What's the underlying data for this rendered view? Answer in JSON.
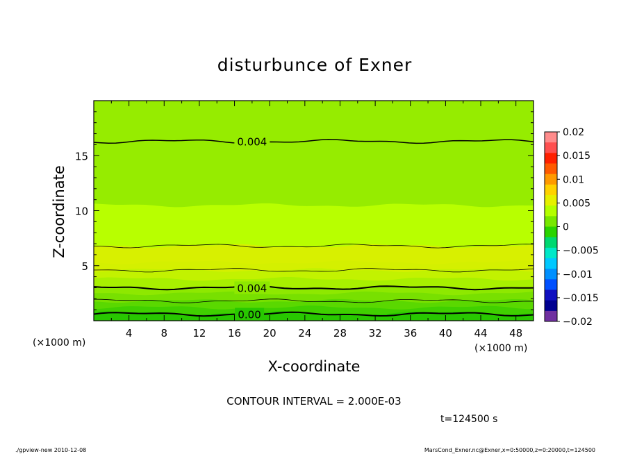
{
  "chart_data": {
    "type": "heatmap",
    "title": "disturbunce of Exner",
    "xlabel": "X-coordinate",
    "ylabel": "Z-coordinate",
    "x_unit": "(×1000 m)",
    "y_unit": "(×1000 m)",
    "xlim": [
      0,
      50
    ],
    "ylim": [
      0,
      20
    ],
    "x_ticks": [
      4,
      8,
      12,
      16,
      20,
      24,
      28,
      32,
      36,
      40,
      44,
      48
    ],
    "y_ticks": [
      5,
      10,
      15
    ],
    "contour_interval_text": "CONTOUR INTERVAL = 2.000E-03",
    "time_text": "t=124500 s",
    "contour_labels": [
      {
        "text": "0.004",
        "x": 18,
        "z": 16.3
      },
      {
        "text": "0.004",
        "x": 18,
        "z": 3.0
      },
      {
        "text": "0.00",
        "x": 17.7,
        "z": 0.6
      }
    ],
    "colorbar": {
      "tick_labels": [
        "0.02",
        "0.015",
        "0.01",
        "0.005",
        "0",
        "−0.005",
        "−0.01",
        "−0.015",
        "−0.02"
      ],
      "levels": [
        0.02,
        0.0175,
        0.015,
        0.0125,
        0.01,
        0.0075,
        0.005,
        0.0025,
        0,
        -0.0025,
        -0.005,
        -0.0075,
        -0.01,
        -0.0125,
        -0.015,
        -0.0175,
        -0.02
      ],
      "colors": [
        "#ff8c8c",
        "#ff5050",
        "#ff2000",
        "#ff5a00",
        "#ff9a00",
        "#ffd200",
        "#e6f000",
        "#b4ff00",
        "#78e800",
        "#2ad400",
        "#00d870",
        "#00e8c8",
        "#00c8ff",
        "#0090ff",
        "#0050ff",
        "#1010c0",
        "#000090",
        "#7030a0"
      ]
    },
    "bands": [
      {
        "z_top": 0.7,
        "color": "#28c800"
      },
      {
        "z_top": 1.2,
        "color": "#40d000"
      },
      {
        "z_top": 1.8,
        "color": "#5ad800"
      },
      {
        "z_top": 2.5,
        "color": "#78e000"
      },
      {
        "z_top": 3.0,
        "color": "#8ee800"
      },
      {
        "z_top": 3.8,
        "color": "#a8f000"
      },
      {
        "z_top": 4.6,
        "color": "#c2f200"
      },
      {
        "z_top": 5.3,
        "color": "#d4f000"
      },
      {
        "z_top": 6.8,
        "color": "#d8f000"
      },
      {
        "z_top": 10.5,
        "color": "#b8ff00"
      },
      {
        "z_top": 20,
        "color": "#96ec00"
      }
    ],
    "contour_lines": [
      {
        "z": 0.6,
        "width": 2.0
      },
      {
        "z": 1.8,
        "width": 0.8
      },
      {
        "z": 3.0,
        "width": 2.0
      },
      {
        "z": 4.6,
        "width": 0.8
      },
      {
        "z": 6.8,
        "width": 0.8
      },
      {
        "z": 16.3,
        "width": 1.5
      }
    ]
  },
  "footer": {
    "left": "./gpview-new   2010-12-08",
    "right": "MarsCond_Exner.nc@Exner,x=0:50000,z=0:20000,t=124500"
  }
}
